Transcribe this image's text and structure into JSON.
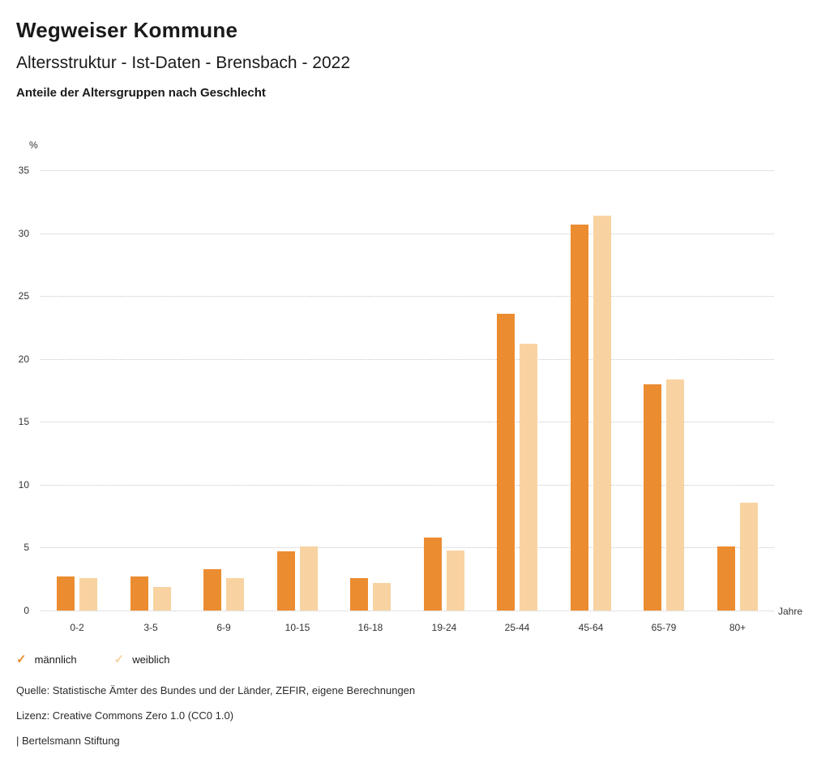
{
  "header": {
    "title": "Wegweiser Kommune",
    "subtitle": "Altersstruktur - Ist-Daten - Brensbach - 2022",
    "caption": "Anteile der Altersgruppen nach Geschlecht"
  },
  "chart_data": {
    "type": "bar",
    "title": "Anteile der Altersgruppen nach Geschlecht",
    "unit_label": "%",
    "x_axis_label": "Jahre",
    "categories": [
      "0-2",
      "3-5",
      "6-9",
      "10-15",
      "16-18",
      "19-24",
      "25-44",
      "45-64",
      "65-79",
      "80+"
    ],
    "series": [
      {
        "name": "männlich",
        "color": "#EC8C30",
        "values": [
          2.7,
          2.7,
          3.3,
          4.7,
          2.6,
          5.8,
          23.6,
          30.7,
          18.0,
          5.1
        ]
      },
      {
        "name": "weiblich",
        "color": "#F8D3A1",
        "values": [
          2.6,
          1.9,
          2.6,
          5.1,
          2.2,
          4.8,
          21.2,
          31.4,
          18.4,
          8.6
        ]
      }
    ],
    "ylim": [
      0,
      35
    ],
    "yticks": [
      0,
      5,
      10,
      15,
      20,
      25,
      30,
      35
    ],
    "grid": "dotted-horizontal",
    "legend_position": "bottom-left"
  },
  "legend": [
    {
      "label": "männlich",
      "color": "#EC8C30",
      "check_icon": "✓"
    },
    {
      "label": "weiblich",
      "color": "#F8D3A1",
      "check_icon": "✓"
    }
  ],
  "footer": {
    "source": "Quelle: Statistische Ämter des Bundes und der Länder, ZEFIR, eigene Berechnungen",
    "license": "Lizenz: Creative Commons Zero 1.0 (CC0 1.0)",
    "attribution": "| Bertelsmann Stiftung"
  }
}
